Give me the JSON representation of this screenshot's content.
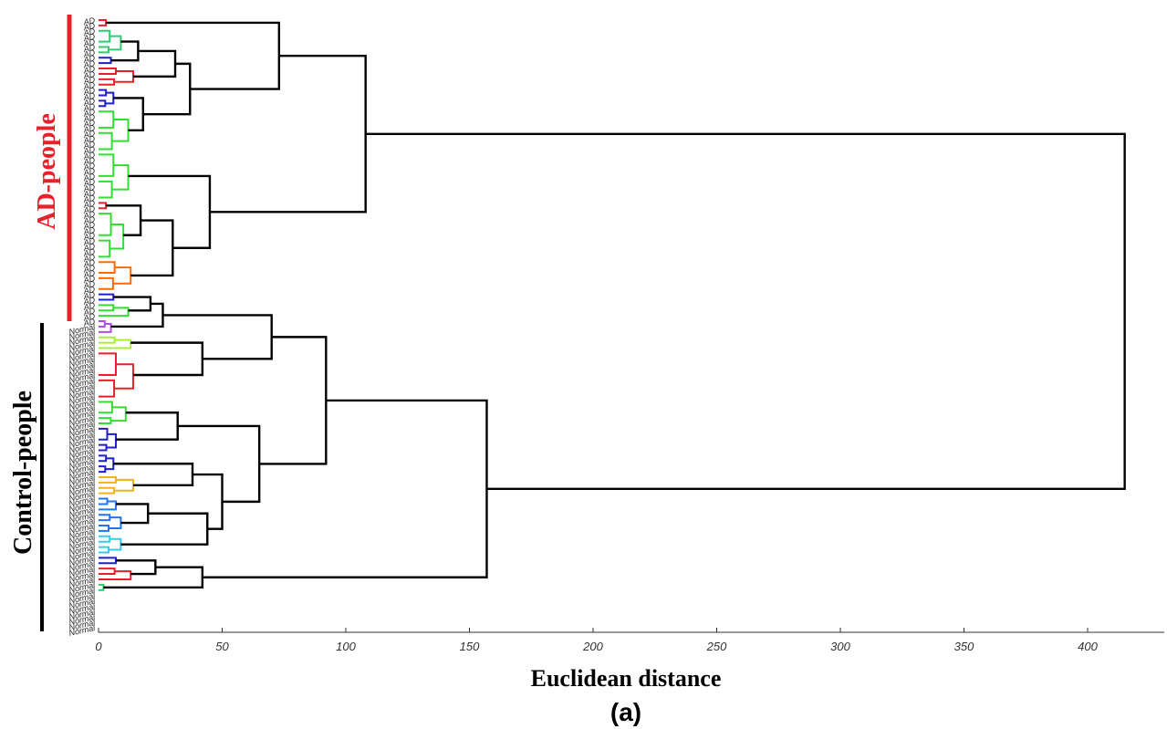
{
  "chart_data": {
    "type": "dendrogram",
    "orientation": "horizontal",
    "xlabel": "Euclidean distance",
    "panel_label": "(a)",
    "xlim": [
      0,
      420
    ],
    "xticks": [
      0,
      50,
      100,
      150,
      200,
      250,
      300,
      350,
      400
    ],
    "groups": [
      {
        "name": "AD-people",
        "color": "#e8202a",
        "leaf_label": "AD",
        "leaf_count": 57
      },
      {
        "name": "Control-people",
        "color": "#000000",
        "leaf_label": "Normal",
        "leaf_count": 57
      }
    ],
    "merges": {
      "root": 415,
      "ad_top": 108,
      "ad_upper": 73,
      "ad_lower": 45,
      "control_top": 157,
      "control_main": 92,
      "control_tail": 42,
      "control_mid": 65,
      "control_upper": 70
    },
    "cluster_colors": [
      "#e8202a",
      "#2ecc71",
      "#1f1fcc",
      "#33dd33",
      "#ff6a00",
      "#b050e0",
      "#aaee33",
      "#f2b21a",
      "#2277ee",
      "#33ccee"
    ]
  }
}
